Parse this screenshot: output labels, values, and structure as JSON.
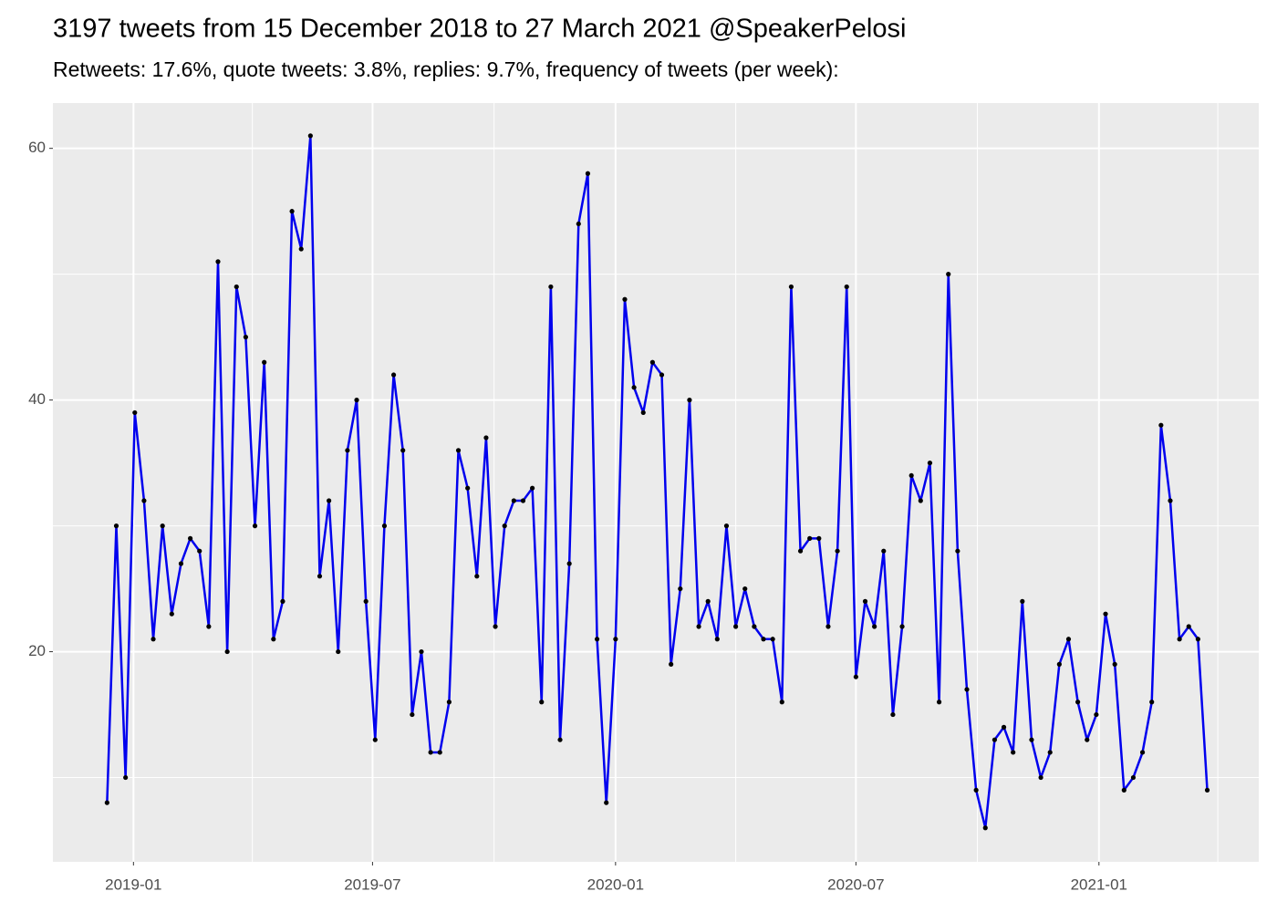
{
  "chart_data": {
    "type": "line",
    "title": "3197 tweets from 15 December 2018 to 27 March 2021 @SpeakerPelosi",
    "subtitle": "Retweets: 17.6%, quote tweets: 3.8%, replies: 9.7%, frequency of tweets (per week):",
    "color": "#0000ee",
    "point_color": "#000000",
    "grid": true,
    "x": [
      "2018-12-12",
      "2018-12-19",
      "2018-12-26",
      "2019-01-02",
      "2019-01-09",
      "2019-01-16",
      "2019-01-23",
      "2019-01-30",
      "2019-02-06",
      "2019-02-13",
      "2019-02-20",
      "2019-02-27",
      "2019-03-06",
      "2019-03-13",
      "2019-03-20",
      "2019-03-27",
      "2019-04-03",
      "2019-04-10",
      "2019-04-17",
      "2019-04-24",
      "2019-05-01",
      "2019-05-08",
      "2019-05-15",
      "2019-05-22",
      "2019-05-29",
      "2019-06-05",
      "2019-06-12",
      "2019-06-19",
      "2019-06-26",
      "2019-07-03",
      "2019-07-10",
      "2019-07-17",
      "2019-07-24",
      "2019-07-31",
      "2019-08-07",
      "2019-08-14",
      "2019-08-21",
      "2019-08-28",
      "2019-09-04",
      "2019-09-11",
      "2019-09-18",
      "2019-09-25",
      "2019-10-02",
      "2019-10-09",
      "2019-10-16",
      "2019-10-23",
      "2019-10-30",
      "2019-11-06",
      "2019-11-13",
      "2019-11-20",
      "2019-11-27",
      "2019-12-04",
      "2019-12-11",
      "2019-12-18",
      "2019-12-25",
      "2020-01-01",
      "2020-01-08",
      "2020-01-15",
      "2020-01-22",
      "2020-01-29",
      "2020-02-05",
      "2020-02-12",
      "2020-02-19",
      "2020-02-26",
      "2020-03-04",
      "2020-03-11",
      "2020-03-18",
      "2020-03-25",
      "2020-04-01",
      "2020-04-08",
      "2020-04-15",
      "2020-04-22",
      "2020-04-29",
      "2020-05-06",
      "2020-05-13",
      "2020-05-20",
      "2020-05-27",
      "2020-06-03",
      "2020-06-10",
      "2020-06-17",
      "2020-06-24",
      "2020-07-01",
      "2020-07-08",
      "2020-07-15",
      "2020-07-22",
      "2020-07-29",
      "2020-08-05",
      "2020-08-12",
      "2020-08-19",
      "2020-08-26",
      "2020-09-02",
      "2020-09-09",
      "2020-09-16",
      "2020-09-23",
      "2020-09-30",
      "2020-10-07",
      "2020-10-14",
      "2020-10-21",
      "2020-10-28",
      "2020-11-04",
      "2020-11-11",
      "2020-11-18",
      "2020-11-25",
      "2020-12-02",
      "2020-12-09",
      "2020-12-16",
      "2020-12-23",
      "2020-12-30",
      "2021-01-06",
      "2021-01-13",
      "2021-01-20",
      "2021-01-27",
      "2021-02-03",
      "2021-02-10",
      "2021-02-17",
      "2021-02-24",
      "2021-03-03",
      "2021-03-10",
      "2021-03-17",
      "2021-03-24"
    ],
    "values": [
      8,
      30,
      10,
      39,
      32,
      21,
      30,
      23,
      27,
      29,
      28,
      22,
      51,
      20,
      49,
      45,
      30,
      43,
      21,
      24,
      55,
      52,
      61,
      26,
      32,
      20,
      36,
      40,
      24,
      13,
      30,
      42,
      36,
      15,
      20,
      12,
      12,
      16,
      36,
      33,
      26,
      37,
      22,
      30,
      32,
      32,
      33,
      16,
      49,
      13,
      27,
      54,
      58,
      21,
      8,
      21,
      48,
      41,
      39,
      43,
      42,
      19,
      25,
      40,
      22,
      24,
      21,
      30,
      22,
      25,
      22,
      21,
      21,
      16,
      49,
      28,
      29,
      29,
      22,
      28,
      49,
      18,
      24,
      22,
      28,
      15,
      22,
      34,
      32,
      35,
      16,
      50,
      28,
      17,
      9,
      6,
      13,
      14,
      12,
      24,
      13,
      10,
      12,
      19,
      21,
      16,
      13,
      15,
      23,
      19,
      9,
      10,
      12,
      16,
      38,
      32,
      21,
      22,
      21,
      9
    ],
    "xlim": [
      "2018-11-01",
      "2021-05-02"
    ],
    "xticks": [
      {
        "value": "2019-01-01",
        "label": "2019-01"
      },
      {
        "value": "2019-07-01",
        "label": "2019-07"
      },
      {
        "value": "2020-01-01",
        "label": "2020-01"
      },
      {
        "value": "2020-07-01",
        "label": "2020-07"
      },
      {
        "value": "2021-01-01",
        "label": "2021-01"
      }
    ],
    "minor_xticks": [
      "2019-04-01",
      "2019-10-01",
      "2020-04-01",
      "2020-10-01",
      "2021-04-01"
    ],
    "ylim": [
      3.3,
      63.6
    ],
    "yticks": [
      20,
      40,
      60
    ],
    "minor_yticks": [
      10,
      30,
      50
    ]
  }
}
